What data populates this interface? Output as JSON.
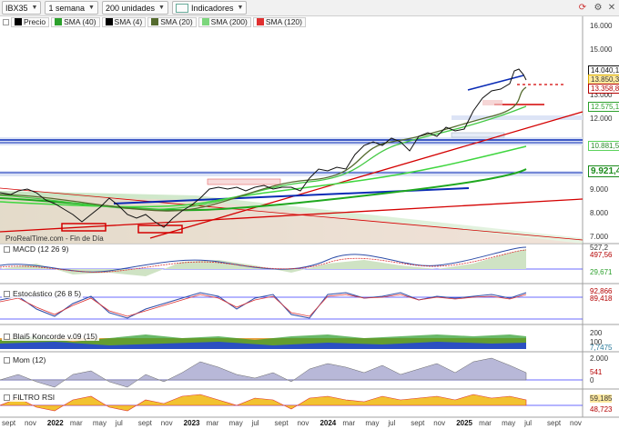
{
  "toolbar": {
    "symbol": "IBX35",
    "period": "1 semana",
    "units": "200 unidades",
    "indicators": "Indicadores"
  },
  "legend": [
    {
      "label": "Precio",
      "color": "#000000"
    },
    {
      "label": "SMA (40)",
      "color": "#2ca02c"
    },
    {
      "label": "SMA (4)",
      "color": "#000000"
    },
    {
      "label": "SMA (20)",
      "color": "#556b2f"
    },
    {
      "label": "SMA (200)",
      "color": "#7cd67c"
    },
    {
      "label": "SMA (120)",
      "color": "#e03030"
    }
  ],
  "watermark": "ProRealTime.com - Fin de Día",
  "price_axis": {
    "ticks": [
      "16.000",
      "15.000",
      "13.000",
      "12.000",
      "9.000",
      "8.000",
      "7.000"
    ],
    "pills": [
      {
        "text": "14.040,1",
        "color": "#111111"
      },
      {
        "text": "13.850,3",
        "color": "#d9ad00"
      },
      {
        "text": "13.358,8",
        "color": "#b40000"
      },
      {
        "text": "12.575,1",
        "color": "#2ca02c"
      },
      {
        "text": "10.881,5",
        "color": "#5bd35b"
      },
      {
        "text": "9.921,4",
        "color": "#1a8a1a"
      }
    ]
  },
  "panels": {
    "macd": {
      "label": "MACD (12 26 9)",
      "values": [
        "527,2",
        "497,56",
        "29,671"
      ]
    },
    "stoch": {
      "label": "Estocástico (26 8 5)",
      "values": [
        "92,866",
        "89,418"
      ]
    },
    "koncorde": {
      "label": "Blai5 Koncorde v.09 (15)",
      "ticks": [
        "200",
        "100",
        "0"
      ],
      "value": "7,7475"
    },
    "mom": {
      "label": "Mom (12)",
      "ticks": [
        "2.000",
        "0"
      ],
      "value": "541"
    },
    "rsi": {
      "label": "FILTRO RSI",
      "values": [
        "59,185",
        "48,723"
      ]
    }
  },
  "x_axis": [
    "sept",
    "nov",
    "2022",
    "mar",
    "may",
    "jul",
    "sept",
    "nov",
    "2023",
    "mar",
    "may",
    "jul",
    "sept",
    "nov",
    "2024",
    "mar",
    "may",
    "jul",
    "sept",
    "nov",
    "2025",
    "mar",
    "may",
    "jul",
    "sept",
    "nov"
  ],
  "x_axis_bold": [
    "2022",
    "2023",
    "2024",
    "2025"
  ],
  "colors": {
    "candle": "#111111",
    "red_line": "#d40000",
    "blue_line": "#0a2bb5",
    "sma200": "#1fa81f",
    "sma120": "#3fd63f"
  },
  "icons": [
    "dropdown-caret-icon",
    "indicators-icon",
    "refresh-icon",
    "settings-icon",
    "close-icon"
  ]
}
